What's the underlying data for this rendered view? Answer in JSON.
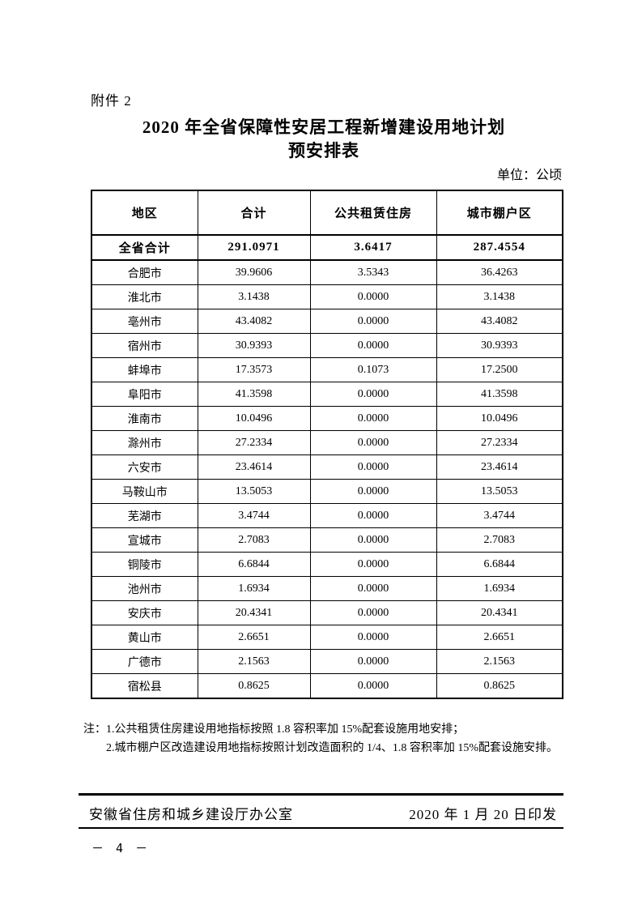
{
  "document": {
    "attachment_label": "附件 2",
    "title_line1": "2020 年全省保障性安居工程新增建设用地计划",
    "title_line2": "预安排表",
    "unit_label": "单位：公顷"
  },
  "table": {
    "headers": [
      "地区",
      "合计",
      "公共租赁住房",
      "城市棚户区"
    ],
    "total_row": {
      "region": "全省合计",
      "total": "291.0971",
      "public_rental": "3.6417",
      "shantytown": "287.4554"
    },
    "rows": [
      [
        "合肥市",
        "39.9606",
        "3.5343",
        "36.4263"
      ],
      [
        "淮北市",
        "3.1438",
        "0.0000",
        "3.1438"
      ],
      [
        "亳州市",
        "43.4082",
        "0.0000",
        "43.4082"
      ],
      [
        "宿州市",
        "30.9393",
        "0.0000",
        "30.9393"
      ],
      [
        "蚌埠市",
        "17.3573",
        "0.1073",
        "17.2500"
      ],
      [
        "阜阳市",
        "41.3598",
        "0.0000",
        "41.3598"
      ],
      [
        "淮南市",
        "10.0496",
        "0.0000",
        "10.0496"
      ],
      [
        "滁州市",
        "27.2334",
        "0.0000",
        "27.2334"
      ],
      [
        "六安市",
        "23.4614",
        "0.0000",
        "23.4614"
      ],
      [
        "马鞍山市",
        "13.5053",
        "0.0000",
        "13.5053"
      ],
      [
        "芜湖市",
        "3.4744",
        "0.0000",
        "3.4744"
      ],
      [
        "宣城市",
        "2.7083",
        "0.0000",
        "2.7083"
      ],
      [
        "铜陵市",
        "6.6844",
        "0.0000",
        "6.6844"
      ],
      [
        "池州市",
        "1.6934",
        "0.0000",
        "1.6934"
      ],
      [
        "安庆市",
        "20.4341",
        "0.0000",
        "20.4341"
      ],
      [
        "黄山市",
        "2.6651",
        "0.0000",
        "2.6651"
      ],
      [
        "广德市",
        "2.1563",
        "0.0000",
        "2.1563"
      ],
      [
        "宿松县",
        "0.8625",
        "0.0000",
        "0.8625"
      ]
    ]
  },
  "notes": {
    "prefix": "注：",
    "items": [
      "1.公共租赁住房建设用地指标按照 1.8 容积率加 15%配套设施用地安排；",
      "2.城市棚户区改造建设用地指标按照计划改造面积的 1/4、1.8 容积率加 15%配套设施安排。"
    ]
  },
  "footer": {
    "issuer": "安徽省住房和城乡建设厅办公室",
    "date": "2020 年 1 月 20 日印发",
    "page_number": "－ 4 －"
  }
}
